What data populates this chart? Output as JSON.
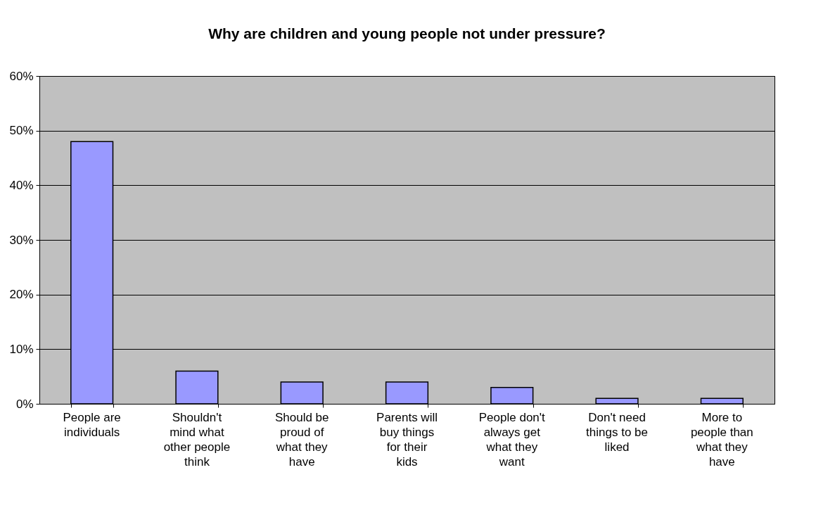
{
  "chart_data": {
    "type": "bar",
    "title": "Why are children and young people not under pressure?",
    "categories": [
      "People are individuals",
      "Shouldn't mind what other people think",
      "Should be proud of what they have",
      "Parents will buy things for their kids",
      "People don't always get what they want",
      "Don't need things to be liked",
      "More to people than what they have"
    ],
    "values": [
      48,
      6,
      4,
      4,
      3,
      1,
      1
    ],
    "color": "#9999ff",
    "ylim": [
      0,
      60
    ],
    "yticks": [
      {
        "value": 0,
        "label": "0%"
      },
      {
        "value": 10,
        "label": "10%"
      },
      {
        "value": 20,
        "label": "20%"
      },
      {
        "value": 30,
        "label": "30%"
      },
      {
        "value": 40,
        "label": "40%"
      },
      {
        "value": 50,
        "label": "50%"
      },
      {
        "value": 60,
        "label": "60%"
      }
    ],
    "grid": "y"
  }
}
